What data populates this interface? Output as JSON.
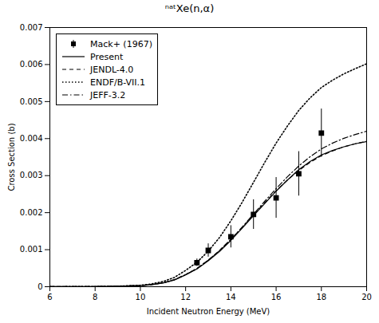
{
  "chart_data": {
    "type": "line",
    "title": "ⁿᵃᵗXe(n,α)",
    "xlabel": "Incident Neutron Energy (MeV)",
    "ylabel": "Cross Section (b)",
    "xlim": [
      6,
      20
    ],
    "ylim": [
      0,
      0.007
    ],
    "xticks": [
      6,
      8,
      10,
      12,
      14,
      16,
      18,
      20
    ],
    "yticks": [
      0,
      0.001,
      0.002,
      0.003,
      0.004,
      0.005,
      0.006,
      0.007
    ],
    "legend": "upper left",
    "series": [
      {
        "name": "Mack+ (1967)",
        "type": "scatter",
        "marker": "square",
        "color": "black",
        "x": [
          12.5,
          13.0,
          14.0,
          15.0,
          16.0,
          17.0,
          18.0
        ],
        "values": [
          0.00065,
          0.00098,
          0.00135,
          0.00195,
          0.0024,
          0.00305,
          0.00415
        ],
        "yerr_lo": [
          0.0001,
          0.00018,
          0.0003,
          0.0004,
          0.00055,
          0.0006,
          0.00065
        ],
        "yerr_hi": [
          0.0001,
          0.00018,
          0.0003,
          0.0004,
          0.00055,
          0.0006,
          0.00065
        ]
      },
      {
        "name": "Present",
        "type": "line",
        "line_style": "solid",
        "color": "black",
        "x": [
          6,
          7,
          8,
          9,
          10,
          10.5,
          11,
          11.5,
          12,
          12.5,
          13,
          13.5,
          14,
          14.5,
          15,
          15.5,
          16,
          16.5,
          17,
          17.5,
          18,
          18.5,
          19,
          19.5,
          20
        ],
        "values": [
          1e-06,
          2e-06,
          5e-06,
          1.2e-05,
          3e-05,
          5.5e-05,
          0.0001,
          0.00018,
          0.00032,
          0.00048,
          0.0007,
          0.00095,
          0.00125,
          0.00158,
          0.00192,
          0.00225,
          0.00258,
          0.00288,
          0.00316,
          0.00338,
          0.00356,
          0.00368,
          0.00378,
          0.00386,
          0.00392
        ]
      },
      {
        "name": "JENDL-4.0",
        "type": "line",
        "line_style": "dashed",
        "color": "black",
        "x": [
          6,
          7,
          8,
          9,
          10,
          10.5,
          11,
          11.5,
          12,
          12.5,
          13,
          13.5,
          14,
          14.5,
          15,
          15.5,
          16,
          16.5,
          17,
          17.5,
          18,
          18.5,
          19,
          19.5,
          20
        ],
        "values": [
          1e-06,
          2e-06,
          5e-06,
          1.3e-05,
          3.2e-05,
          5.8e-05,
          0.000105,
          0.00019,
          0.00033,
          0.000495,
          0.00072,
          0.00098,
          0.00128,
          0.0016,
          0.00194,
          0.00227,
          0.00259,
          0.00288,
          0.00314,
          0.00336,
          0.00354,
          0.00367,
          0.00378,
          0.00386,
          0.00393
        ]
      },
      {
        "name": "ENDF/B-VII.1",
        "type": "line",
        "line_style": "dotted",
        "color": "black",
        "x": [
          6,
          7,
          8,
          9,
          10,
          10.5,
          11,
          11.5,
          12,
          12.5,
          13,
          13.5,
          14,
          14.5,
          15,
          15.5,
          16,
          16.5,
          17,
          17.5,
          18,
          18.5,
          19,
          19.5,
          20
        ],
        "values": [
          1e-06,
          2e-06,
          6e-06,
          1.5e-05,
          4e-05,
          7.5e-05,
          0.00014,
          0.00025,
          0.00044,
          0.00066,
          0.00096,
          0.00133,
          0.00178,
          0.00228,
          0.00282,
          0.00336,
          0.00388,
          0.00434,
          0.00476,
          0.0051,
          0.00538,
          0.00558,
          0.00575,
          0.00589,
          0.00602
        ]
      },
      {
        "name": "JEFF-3.2",
        "type": "line",
        "line_style": "dashdot",
        "color": "black",
        "x": [
          6,
          7,
          8,
          9,
          10,
          10.5,
          11,
          11.5,
          12,
          12.5,
          13,
          13.5,
          14,
          14.5,
          15,
          15.5,
          16,
          16.5,
          17,
          17.5,
          18,
          18.5,
          19,
          19.5,
          20
        ],
        "values": [
          1e-06,
          2e-06,
          5e-06,
          1.2e-05,
          3e-05,
          5.6e-05,
          0.000102,
          0.000184,
          0.000325,
          0.00049,
          0.000715,
          0.000975,
          0.00128,
          0.00161,
          0.00196,
          0.00231,
          0.00265,
          0.00297,
          0.00326,
          0.00351,
          0.00372,
          0.00388,
          0.00401,
          0.00411,
          0.0042
        ]
      }
    ]
  }
}
